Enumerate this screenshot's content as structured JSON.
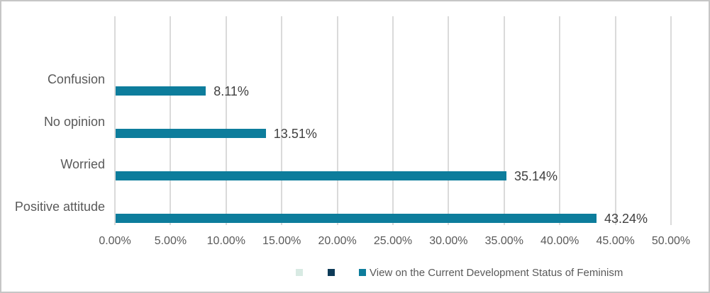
{
  "chart_data": {
    "type": "bar",
    "orientation": "horizontal",
    "title": "",
    "categories": [
      "Confusion",
      "No opinion",
      "Worried",
      "Positive attitude"
    ],
    "values": [
      8.11,
      13.51,
      35.14,
      43.24
    ],
    "value_labels": [
      "8.11%",
      "13.51%",
      "35.14%",
      "43.24%"
    ],
    "series_name": "View on the Current Development Status of Feminism",
    "xlabel": "",
    "ylabel": "",
    "xlim": [
      0,
      50
    ],
    "x_tick_step": 5,
    "x_ticks": [
      "0.00%",
      "5.00%",
      "10.00%",
      "15.00%",
      "20.00%",
      "25.00%",
      "30.00%",
      "35.00%",
      "40.00%",
      "45.00%",
      "50.00%"
    ],
    "grid": "vertical",
    "legend_position": "bottom",
    "bar_color": "#0d7d9c"
  },
  "legend": {
    "items": [
      {
        "label": "",
        "color": "#d8eae3"
      },
      {
        "label": "",
        "color": "#0d3b58"
      },
      {
        "label": "View on the Current Development Status of Feminism",
        "color": "#0d7d9c"
      }
    ]
  },
  "colors": {
    "bar": "#0d7d9c",
    "gridline": "#dadada",
    "frame_border": "#c6c6c6",
    "axis_text": "#595959",
    "value_text": "#404040",
    "legend_swatch_1": "#d8eae3",
    "legend_swatch_2": "#0d3b58",
    "legend_swatch_3": "#0d7d9c"
  }
}
